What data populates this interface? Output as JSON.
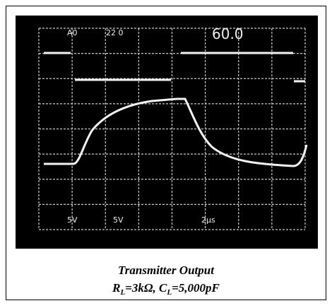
{
  "scope": {
    "labels": [
      "A0",
      "22 0",
      "60.0",
      "5V",
      "5V",
      "2μs"
    ]
  },
  "caption": {
    "title": "Transmitter Output",
    "r": "R",
    "r_sub": "L",
    "mid": "=3kΩ, C",
    "c_sub": "L",
    "end": "=5,000pF"
  }
}
